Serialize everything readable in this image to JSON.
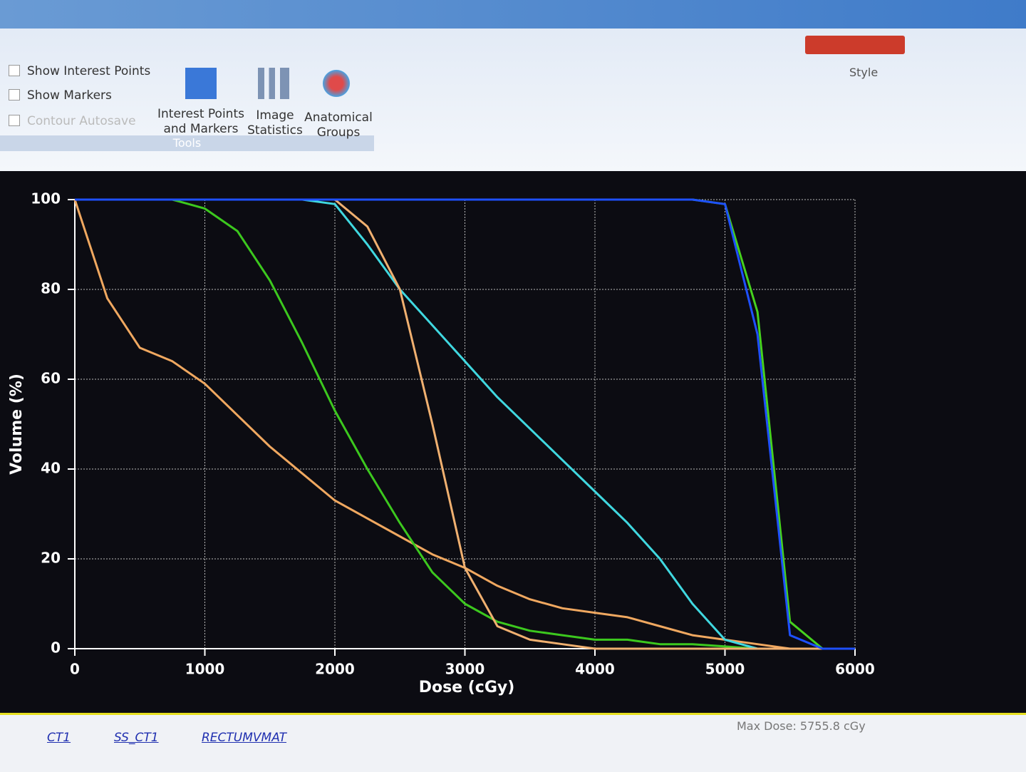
{
  "toolbar": {
    "checkboxes": [
      "Show Interest Points",
      "Show Markers",
      "Contour Autosave"
    ],
    "group_label": "Tools",
    "buttons": [
      "Interest Points and Markers",
      "Image Statistics",
      "Anatomical Groups"
    ],
    "style": "Style"
  },
  "chart_data": {
    "type": "line",
    "xlabel": "Dose (cGy)",
    "ylabel": "Volume (%)",
    "x": [
      0,
      250,
      500,
      750,
      1000,
      1250,
      1500,
      1750,
      2000,
      2250,
      2500,
      2750,
      3000,
      3250,
      3500,
      3750,
      4000,
      4250,
      4500,
      4750,
      5000,
      5250,
      5500,
      5750,
      6000
    ],
    "series": [
      {
        "color": "#f0a860",
        "values": [
          100,
          78,
          67,
          64,
          59,
          52,
          45,
          39,
          33,
          29,
          25,
          21,
          18,
          14,
          11,
          9,
          8,
          7,
          5,
          3,
          2,
          1,
          0,
          0,
          0
        ]
      },
      {
        "color": "#3cc81e",
        "values": [
          100,
          100,
          100,
          100,
          98,
          93,
          82,
          68,
          53,
          40,
          28,
          17,
          10,
          6,
          4,
          3,
          2,
          2,
          1,
          1,
          0.5,
          0,
          0,
          0,
          0
        ]
      },
      {
        "color": "#40d8e0",
        "values": [
          100,
          100,
          100,
          100,
          100,
          100,
          100,
          100,
          99,
          90,
          80,
          72,
          64,
          56,
          49,
          42,
          35,
          28,
          20,
          10,
          2,
          0,
          0,
          0,
          0
        ]
      },
      {
        "color": "#f0b070",
        "values": [
          100,
          100,
          100,
          100,
          100,
          100,
          100,
          100,
          100,
          94,
          80,
          50,
          18,
          5,
          2,
          1,
          0,
          0,
          0,
          0,
          0,
          0,
          0,
          0,
          0
        ]
      },
      {
        "color": "#46d21e",
        "values": [
          100,
          100,
          100,
          100,
          100,
          100,
          100,
          100,
          100,
          100,
          100,
          100,
          100,
          100,
          100,
          100,
          100,
          100,
          100,
          100,
          99,
          75,
          6,
          0,
          0
        ]
      },
      {
        "color": "#1e50ff",
        "values": [
          100,
          100,
          100,
          100,
          100,
          100,
          100,
          100,
          100,
          100,
          100,
          100,
          100,
          100,
          100,
          100,
          100,
          100,
          100,
          100,
          99,
          70,
          3,
          0,
          0
        ]
      }
    ],
    "xlim": [
      0,
      6000
    ],
    "xticks": [
      0,
      1000,
      2000,
      3000,
      4000,
      5000,
      6000
    ],
    "ylim": [
      0,
      100
    ],
    "yticks": [
      0,
      20,
      40,
      60,
      80,
      100
    ],
    "grid": true
  },
  "status": {
    "max_dose": "Max Dose: 5755.8 cGy",
    "tabs": [
      "CT1",
      "SS_CT1",
      "RECTUMVMAT"
    ]
  }
}
